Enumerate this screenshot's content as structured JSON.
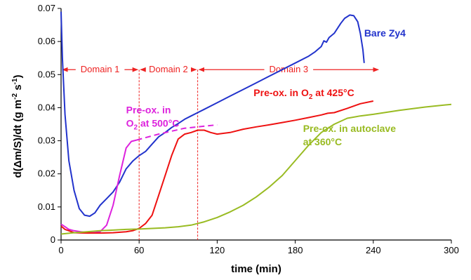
{
  "chart_data": {
    "type": "line",
    "xlabel": "time (min)",
    "ylabel_parts": {
      "main": "d(Δm/S)/dt (g m",
      "sup1": "-2",
      "mid": " s",
      "sup2": "-1",
      "end": ")"
    },
    "xlim": [
      0,
      300
    ],
    "ylim": [
      0,
      0.07
    ],
    "x_ticks": [
      0,
      60,
      120,
      180,
      240,
      300
    ],
    "y_ticks": [
      0,
      0.01,
      0.02,
      0.03,
      0.04,
      0.05,
      0.06,
      0.07
    ],
    "x_tick_labels": [
      "0",
      "60",
      "120",
      "180",
      "240",
      "300"
    ],
    "y_tick_labels": [
      "0",
      "0.01",
      "0.02",
      "0.03",
      "0.04",
      "0.05",
      "0.06",
      "0.07"
    ],
    "grid": false,
    "domains": [
      {
        "label": "Domain 1",
        "x_start": 0,
        "x_end": 60,
        "y": 0.0515
      },
      {
        "label": "Domain 2",
        "x_start": 60,
        "x_end": 105,
        "y": 0.0515
      },
      {
        "label": "Domain 3",
        "x_start": 105,
        "x_end": 245,
        "y": 0.0515
      }
    ],
    "domain_boundaries": [
      {
        "x": 60,
        "y_top": 0.0515
      },
      {
        "x": 105,
        "y_top": 0.0515
      }
    ],
    "domain_color": "#ee2222",
    "series": [
      {
        "id": "bare",
        "color": "#2233cc",
        "label_lines": [
          {
            "text": "Bare Zy4"
          }
        ],
        "label_anchor": {
          "x": 233,
          "y": 0.0615
        },
        "points": [
          [
            0,
            0.069
          ],
          [
            1,
            0.055
          ],
          [
            3,
            0.038
          ],
          [
            6,
            0.024
          ],
          [
            10,
            0.015
          ],
          [
            14,
            0.0095
          ],
          [
            18,
            0.0075
          ],
          [
            22,
            0.0072
          ],
          [
            26,
            0.0082
          ],
          [
            30,
            0.0105
          ],
          [
            35,
            0.0125
          ],
          [
            40,
            0.0145
          ],
          [
            45,
            0.0175
          ],
          [
            50,
            0.0215
          ],
          [
            55,
            0.0238
          ],
          [
            60,
            0.0255
          ],
          [
            65,
            0.0268
          ],
          [
            70,
            0.029
          ],
          [
            75,
            0.0312
          ],
          [
            80,
            0.0325
          ],
          [
            85,
            0.034
          ],
          [
            90,
            0.0352
          ],
          [
            95,
            0.0365
          ],
          [
            100,
            0.0375
          ],
          [
            105,
            0.0385
          ],
          [
            110,
            0.0395
          ],
          [
            120,
            0.0415
          ],
          [
            130,
            0.0435
          ],
          [
            140,
            0.0455
          ],
          [
            150,
            0.0475
          ],
          [
            160,
            0.0495
          ],
          [
            170,
            0.0515
          ],
          [
            180,
            0.0535
          ],
          [
            190,
            0.0555
          ],
          [
            195,
            0.0568
          ],
          [
            200,
            0.0585
          ],
          [
            202,
            0.0602
          ],
          [
            204,
            0.0598
          ],
          [
            206,
            0.0612
          ],
          [
            210,
            0.0625
          ],
          [
            215,
            0.0655
          ],
          [
            218,
            0.067
          ],
          [
            222,
            0.068
          ],
          [
            225,
            0.0678
          ],
          [
            228,
            0.066
          ],
          [
            230,
            0.0625
          ],
          [
            232,
            0.0575
          ],
          [
            233,
            0.0535
          ]
        ]
      },
      {
        "id": "o2_500",
        "color": "#dd22dd",
        "label_lines": [
          {
            "text": "Pre-ox. in"
          },
          {
            "text": "O",
            "sub": "2",
            "rest": " at 500°C"
          }
        ],
        "label_anchor": {
          "x": 50,
          "y": 0.0383
        },
        "points": [
          [
            0,
            0.0048
          ],
          [
            3,
            0.004
          ],
          [
            6,
            0.0032
          ],
          [
            10,
            0.0028
          ],
          [
            15,
            0.0025
          ],
          [
            20,
            0.0023
          ],
          [
            25,
            0.0022
          ],
          [
            30,
            0.0025
          ],
          [
            35,
            0.0045
          ],
          [
            40,
            0.0105
          ],
          [
            45,
            0.0195
          ],
          [
            50,
            0.0278
          ],
          [
            54,
            0.0298
          ],
          [
            58,
            0.0302
          ]
        ],
        "extension": [
          [
            58,
            0.0302
          ],
          [
            75,
            0.032
          ],
          [
            95,
            0.0338
          ],
          [
            120,
            0.0348
          ]
        ]
      },
      {
        "id": "o2_425",
        "color": "#ee1111",
        "label_lines": [
          {
            "text": "Pre-ox. in O",
            "sub": "2",
            "rest": " at 425°C"
          }
        ],
        "label_anchor": {
          "x": 148,
          "y": 0.0435
        },
        "points": [
          [
            0,
            0.0042
          ],
          [
            3,
            0.0032
          ],
          [
            6,
            0.0028
          ],
          [
            10,
            0.0022
          ],
          [
            20,
            0.0021
          ],
          [
            30,
            0.0021
          ],
          [
            40,
            0.0022
          ],
          [
            50,
            0.0025
          ],
          [
            55,
            0.0028
          ],
          [
            60,
            0.0035
          ],
          [
            65,
            0.005
          ],
          [
            70,
            0.0075
          ],
          [
            75,
            0.0135
          ],
          [
            80,
            0.0195
          ],
          [
            85,
            0.0255
          ],
          [
            90,
            0.0305
          ],
          [
            95,
            0.032
          ],
          [
            100,
            0.0325
          ],
          [
            105,
            0.0332
          ],
          [
            110,
            0.0332
          ],
          [
            115,
            0.0325
          ],
          [
            120,
            0.032
          ],
          [
            130,
            0.0325
          ],
          [
            140,
            0.0335
          ],
          [
            150,
            0.0342
          ],
          [
            160,
            0.0348
          ],
          [
            170,
            0.0355
          ],
          [
            180,
            0.0362
          ],
          [
            190,
            0.037
          ],
          [
            200,
            0.0378
          ],
          [
            205,
            0.0383
          ],
          [
            210,
            0.0385
          ],
          [
            220,
            0.0398
          ],
          [
            230,
            0.0412
          ],
          [
            240,
            0.042
          ]
        ]
      },
      {
        "id": "autoclave",
        "color": "#99bb22",
        "label_lines": [
          {
            "text": "Pre-ox. in autoclave"
          },
          {
            "text": "at 360°C"
          }
        ],
        "label_anchor": {
          "x": 186,
          "y": 0.0327
        },
        "points": [
          [
            0,
            0.0018
          ],
          [
            10,
            0.0022
          ],
          [
            20,
            0.0025
          ],
          [
            30,
            0.0028
          ],
          [
            40,
            0.003
          ],
          [
            50,
            0.0032
          ],
          [
            60,
            0.0033
          ],
          [
            70,
            0.0035
          ],
          [
            80,
            0.0037
          ],
          [
            90,
            0.004
          ],
          [
            100,
            0.0045
          ],
          [
            110,
            0.0055
          ],
          [
            120,
            0.0068
          ],
          [
            130,
            0.0085
          ],
          [
            140,
            0.0105
          ],
          [
            150,
            0.013
          ],
          [
            160,
            0.016
          ],
          [
            170,
            0.0195
          ],
          [
            180,
            0.024
          ],
          [
            190,
            0.0285
          ],
          [
            200,
            0.0325
          ],
          [
            210,
            0.035
          ],
          [
            220,
            0.0368
          ],
          [
            230,
            0.0375
          ],
          [
            240,
            0.038
          ],
          [
            260,
            0.0392
          ],
          [
            280,
            0.0402
          ],
          [
            300,
            0.041
          ]
        ]
      }
    ]
  }
}
